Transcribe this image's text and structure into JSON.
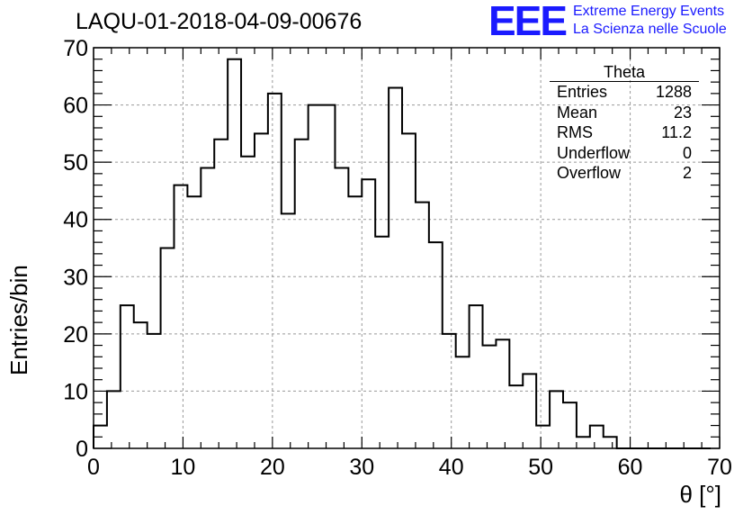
{
  "title": "LAQU-01-2018-04-09-00676",
  "logo": {
    "mark": "EEE",
    "line1": "Extreme Energy Events",
    "line2": "La Scienza nelle Scuole",
    "color": "#1a1aff"
  },
  "stats_box": {
    "title": "Theta",
    "rows": [
      {
        "label": "Entries",
        "value": "1288"
      },
      {
        "label": "Mean",
        "value": "23"
      },
      {
        "label": "RMS",
        "value": "11.2"
      },
      {
        "label": "Underflow",
        "value": "0"
      },
      {
        "label": "Overflow",
        "value": "2"
      }
    ]
  },
  "chart_data": {
    "type": "histogram",
    "title": "LAQU-01-2018-04-09-00676",
    "xlabel": "θ [°]",
    "ylabel": "Entries/bin",
    "xlim": [
      0,
      70
    ],
    "ylim": [
      0,
      70
    ],
    "xticks": [
      0,
      10,
      20,
      30,
      40,
      50,
      60,
      70
    ],
    "yticks": [
      0,
      10,
      20,
      30,
      40,
      50,
      60,
      70
    ],
    "grid": true,
    "line_color": "#000000",
    "bin_width": 1.5,
    "bin_start": 0,
    "values": [
      4,
      10,
      25,
      22,
      20,
      35,
      46,
      44,
      49,
      54,
      68,
      51,
      55,
      62,
      41,
      54,
      60,
      60,
      49,
      44,
      47,
      37,
      63,
      55,
      43,
      36,
      20,
      16,
      25,
      18,
      19,
      11,
      13,
      4,
      10,
      8,
      2,
      4,
      2,
      0,
      0,
      0,
      0,
      0,
      0,
      0
    ]
  }
}
